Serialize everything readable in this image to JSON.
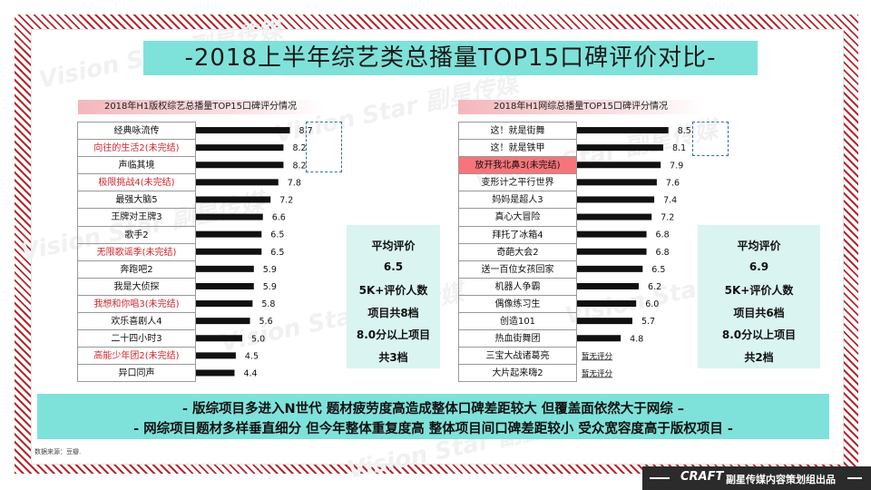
{
  "title": "-2018上半年综艺类总播量TOP15口碑评价对比-",
  "left": {
    "subtitle": "2018年H1版权综艺总播量TOP15口碑评分情况",
    "rows": [
      {
        "name": "经典咏流传",
        "value": 8.7,
        "status": "normal"
      },
      {
        "name": "向往的生活2(未完结)",
        "value": 8.2,
        "status": "red"
      },
      {
        "name": "声临其境",
        "value": 8.2,
        "status": "normal"
      },
      {
        "name": "极限挑战4(未完结)",
        "value": 7.8,
        "status": "red"
      },
      {
        "name": "最强大脑5",
        "value": 7.2,
        "status": "normal"
      },
      {
        "name": "王牌对王牌3",
        "value": 6.6,
        "status": "normal"
      },
      {
        "name": "歌手2",
        "value": 6.5,
        "status": "normal"
      },
      {
        "name": "无限歌谣季(未完结)",
        "value": 6.5,
        "status": "red"
      },
      {
        "name": "奔跑吧2",
        "value": 5.9,
        "status": "normal"
      },
      {
        "name": "我是大侦探",
        "value": 5.9,
        "status": "normal"
      },
      {
        "name": "我想和你唱3(未完结)",
        "value": 5.8,
        "status": "red"
      },
      {
        "name": "欢乐喜剧人4",
        "value": 5.6,
        "status": "normal"
      },
      {
        "name": "二十四小时3",
        "value": 5.0,
        "status": "normal"
      },
      {
        "name": "高能少年团2(未完结)",
        "value": 4.5,
        "status": "red"
      },
      {
        "name": "异口同声",
        "value": 4.4,
        "status": "normal"
      }
    ],
    "stats": [
      "平均评价",
      "6.5",
      "5K+评价人数",
      "项目共8档",
      "8.0分以上项目",
      "共3档"
    ]
  },
  "right": {
    "subtitle": "2018年H1网综总播量TOP15口碑评分情况",
    "rows": [
      {
        "name": "这！就是街舞",
        "value": 8.5,
        "status": "normal"
      },
      {
        "name": "这！就是铁甲",
        "value": 8.1,
        "status": "normal"
      },
      {
        "name": "放开我北鼻3(未完结)",
        "value": 7.9,
        "status": "fill"
      },
      {
        "name": "变形计之平行世界",
        "value": 7.6,
        "status": "normal"
      },
      {
        "name": "妈妈是超人3",
        "value": 7.4,
        "status": "normal"
      },
      {
        "name": "真心大冒险",
        "value": 7.2,
        "status": "normal"
      },
      {
        "name": "拜托了冰箱4",
        "value": 6.8,
        "status": "normal"
      },
      {
        "name": "奇葩大会2",
        "value": 6.8,
        "status": "normal"
      },
      {
        "name": "送一百位女孩回家",
        "value": 6.5,
        "status": "normal"
      },
      {
        "name": "机器人争霸",
        "value": 6.2,
        "status": "normal"
      },
      {
        "name": "偶像练习生",
        "value": 6.0,
        "status": "normal"
      },
      {
        "name": "创造101",
        "value": 5.7,
        "status": "normal"
      },
      {
        "name": "热血街舞团",
        "value": 4.8,
        "status": "normal"
      },
      {
        "name": "三宝大战诸葛亮",
        "value": null,
        "status": "normal",
        "note": "暂无评分"
      },
      {
        "name": "大片起来嗨2",
        "value": null,
        "status": "normal",
        "note": "暂无评分"
      }
    ],
    "stats": [
      "平均评价",
      "6.9",
      "5K+评价人数",
      "项目共6档",
      "8.0分以上项目",
      "共2档"
    ]
  },
  "bottom": {
    "line1": "-  版综项目多进入N世代  题材疲劳度高造成整体口碑差距较大  但覆盖面依然大于网综  –",
    "line2": "-  网综项目题材多样垂直细分  但今年整体重复度高  整体项目间口碑差距较小  受众宽容度高于版权项目  -"
  },
  "source": "数据来源：豆瓣.",
  "watermark": "Vision Star 副星传媒",
  "footer": {
    "logo": "CRAFT",
    "text": "副星传媒内容策划组出品"
  },
  "colors": {
    "accent": "#7fe2da",
    "bar": "#111111",
    "highlight": "#f7757a",
    "red_text": "#d0252d",
    "frame": "#b42830"
  },
  "chart_data": [
    {
      "type": "bar",
      "orientation": "horizontal",
      "title": "2018年H1版权综艺总播量TOP15口碑评分情况",
      "categories": [
        "经典咏流传",
        "向往的生活2(未完结)",
        "声临其境",
        "极限挑战4(未完结)",
        "最强大脑5",
        "王牌对王牌3",
        "歌手2",
        "无限歌谣季(未完结)",
        "奔跑吧2",
        "我是大侦探",
        "我想和你唱3(未完结)",
        "欢乐喜剧人4",
        "二十四小时3",
        "高能少年团2(未完结)",
        "异口同声"
      ],
      "values": [
        8.7,
        8.2,
        8.2,
        7.8,
        7.2,
        6.6,
        6.5,
        6.5,
        5.9,
        5.9,
        5.8,
        5.6,
        5.0,
        4.5,
        4.4
      ]
    },
    {
      "type": "bar",
      "orientation": "horizontal",
      "title": "2018年H1网综总播量TOP15口碑评分情况",
      "categories": [
        "这！就是街舞",
        "这！就是铁甲",
        "放开我北鼻3(未完结)",
        "变形计之平行世界",
        "妈妈是超人3",
        "真心大冒险",
        "拜托了冰箱4",
        "奇葩大会2",
        "送一百位女孩回家",
        "机器人争霸",
        "偶像练习生",
        "创造101",
        "热血街舞团",
        "三宝大战诸葛亮",
        "大片起来嗨2"
      ],
      "values": [
        8.5,
        8.1,
        7.9,
        7.6,
        7.4,
        7.2,
        6.8,
        6.8,
        6.5,
        6.2,
        6.0,
        5.7,
        4.8,
        null,
        null
      ]
    }
  ]
}
